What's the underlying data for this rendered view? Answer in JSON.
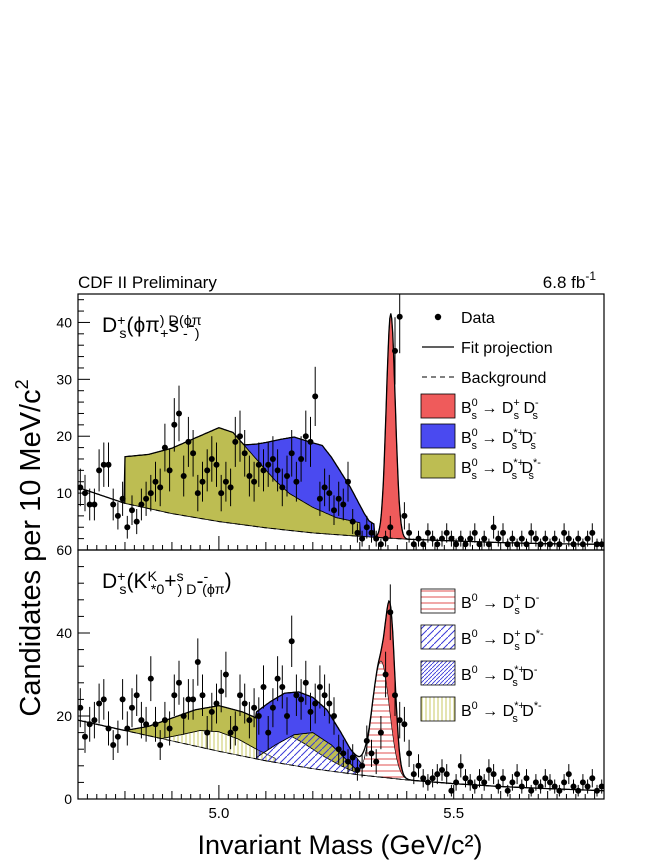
{
  "header": {
    "left": "CDF II Preliminary",
    "right_base": "6.8 fb",
    "right_sup": "-1"
  },
  "axes": {
    "ylabel_main": "Candidates per 10 MeV/c",
    "ylabel_sup": "2",
    "xlabel": "Invariant Mass (GeV/c²)",
    "x_ticks": [
      {
        "value": 5.0,
        "label": "5.0"
      },
      {
        "value": 5.5,
        "label": "5.5"
      }
    ]
  },
  "colors": {
    "red": "#ef5b5b",
    "blue": "#4a4af0",
    "olive": "#bdbd52",
    "hatch_red": "#e05050",
    "hatch_blue": "#3a3ad8",
    "hatch_yellow": "#c8c860"
  },
  "chart_data": [
    {
      "type": "scatter",
      "name": "top-panel",
      "title_parts": [
        "D",
        "s",
        "+",
        "(ϕπ",
        "+",
        ") D",
        "s",
        "-",
        "(ϕπ",
        "-",
        ")"
      ],
      "xlim": [
        4.7,
        5.82
      ],
      "ylim": [
        0,
        45
      ],
      "y_ticks": [
        10,
        20,
        30,
        40
      ],
      "legend": [
        {
          "kind": "marker",
          "label": "Data"
        },
        {
          "kind": "line",
          "label": "Fit projection"
        },
        {
          "kind": "dashed",
          "label": "Background"
        },
        {
          "kind": "fill",
          "color": "red",
          "parts": [
            "B",
            "s",
            "0",
            " → D",
            "s",
            "+",
            " D",
            "s",
            "-"
          ]
        },
        {
          "kind": "fill",
          "color": "blue",
          "parts": [
            "B",
            "s",
            "0",
            " → D",
            "s",
            "*+",
            " D",
            "s",
            "-"
          ]
        },
        {
          "kind": "fill",
          "color": "olive",
          "parts": [
            "B",
            "s",
            "0",
            " → D",
            "s",
            "*+",
            " D",
            "s",
            "*-"
          ]
        }
      ],
      "data_points": {
        "x": [
          4.705,
          4.715,
          4.725,
          4.735,
          4.745,
          4.755,
          4.765,
          4.775,
          4.785,
          4.795,
          4.805,
          4.815,
          4.825,
          4.835,
          4.845,
          4.855,
          4.865,
          4.875,
          4.885,
          4.895,
          4.905,
          4.915,
          4.925,
          4.935,
          4.945,
          4.955,
          4.965,
          4.975,
          4.985,
          4.995,
          5.005,
          5.015,
          5.025,
          5.035,
          5.045,
          5.055,
          5.065,
          5.075,
          5.085,
          5.095,
          5.105,
          5.115,
          5.125,
          5.135,
          5.145,
          5.155,
          5.165,
          5.175,
          5.185,
          5.195,
          5.205,
          5.215,
          5.225,
          5.235,
          5.245,
          5.255,
          5.265,
          5.275,
          5.285,
          5.295,
          5.305,
          5.315,
          5.325,
          5.335,
          5.345,
          5.355,
          5.365,
          5.375,
          5.385,
          5.395,
          5.405,
          5.415,
          5.425,
          5.435,
          5.445,
          5.455,
          5.465,
          5.475,
          5.485,
          5.495,
          5.505,
          5.515,
          5.525,
          5.535,
          5.545,
          5.555,
          5.565,
          5.575,
          5.585,
          5.595,
          5.605,
          5.615,
          5.625,
          5.635,
          5.645,
          5.655,
          5.665,
          5.675,
          5.685,
          5.695,
          5.705,
          5.715,
          5.725,
          5.735,
          5.745,
          5.755,
          5.765,
          5.775,
          5.785,
          5.795,
          5.805,
          5.815
        ],
        "y": [
          11,
          10,
          8,
          8,
          14,
          15,
          15,
          8,
          6,
          9,
          4,
          7,
          5,
          8,
          9,
          10,
          12,
          11,
          18,
          14,
          22,
          24,
          13,
          19,
          17,
          10,
          12,
          14,
          16,
          15,
          10,
          12,
          11,
          19,
          20,
          17,
          13,
          12,
          15,
          14,
          15,
          16,
          14,
          11,
          13,
          17,
          12,
          16,
          20,
          19,
          27,
          9,
          11,
          10,
          7,
          9,
          8,
          12,
          5,
          3,
          2,
          4,
          3,
          2,
          1,
          2,
          4,
          35,
          41,
          6,
          3,
          1,
          2,
          1,
          3,
          2,
          1,
          2,
          3,
          2,
          1,
          2,
          1,
          2,
          3,
          1,
          2,
          1,
          4,
          2,
          3,
          1,
          2,
          1,
          2,
          1,
          3,
          2,
          1,
          2,
          1,
          2,
          1,
          3,
          2,
          1,
          2,
          1,
          2,
          3,
          1,
          1
        ],
        "yerr": [
          3.3,
          3.2,
          2.8,
          2.8,
          3.7,
          3.9,
          3.9,
          2.8,
          2.4,
          3.0,
          2.0,
          2.6,
          2.2,
          2.8,
          3.0,
          3.2,
          3.5,
          3.3,
          4.2,
          3.7,
          4.7,
          4.9,
          3.6,
          4.4,
          4.1,
          3.2,
          3.5,
          3.7,
          4.0,
          3.9,
          3.2,
          3.5,
          3.3,
          4.4,
          4.5,
          4.1,
          3.6,
          3.5,
          3.9,
          3.7,
          3.9,
          4.0,
          3.7,
          3.3,
          3.6,
          4.1,
          3.5,
          4.0,
          4.5,
          4.4,
          5.2,
          3.0,
          3.3,
          3.2,
          2.6,
          3.0,
          2.8,
          3.5,
          2.2,
          1.7,
          1.4,
          2.0,
          1.7,
          1.4,
          1.0,
          1.4,
          2.0,
          5.9,
          6.4,
          2.4,
          1.7,
          1.0,
          1.4,
          1.0,
          1.7,
          1.4,
          1.0,
          1.4,
          1.7,
          1.4,
          1.0,
          1.4,
          1.0,
          1.4,
          1.7,
          1.0,
          1.4,
          1.0,
          2.0,
          1.4,
          1.7,
          1.0,
          1.4,
          1.0,
          1.4,
          1.0,
          1.7,
          1.4,
          1.0,
          1.4,
          1.0,
          1.4,
          1.0,
          1.7,
          1.4,
          1.0,
          1.4,
          1.0,
          1.4,
          1.7,
          1.0,
          1.0
        ]
      },
      "components": {
        "background_curve": {
          "x": [
            4.7,
            4.8,
            4.9,
            5.0,
            5.1,
            5.2,
            5.3,
            5.4,
            5.5,
            5.6,
            5.7,
            5.82
          ],
          "y": [
            11.0,
            8.2,
            6.4,
            5.0,
            3.9,
            3.0,
            2.4,
            1.9,
            1.6,
            1.3,
            1.1,
            1.0
          ]
        },
        "olive_fill": {
          "x": [
            4.8,
            4.85,
            4.9,
            4.95,
            5.0,
            5.03,
            5.06,
            5.09,
            5.12,
            5.15,
            5.2,
            5.25,
            5.3
          ],
          "y": [
            8.2,
            9.5,
            11.5,
            14.0,
            16.5,
            16.0,
            13.5,
            11.0,
            8.5,
            6.5,
            4.5,
            3.0,
            2.4
          ]
        },
        "blue_fill": {
          "x": [
            5.05,
            5.08,
            5.1,
            5.13,
            5.16,
            5.19,
            5.22,
            5.24,
            5.26,
            5.28,
            5.3,
            5.31,
            5.32,
            5.33
          ],
          "y": [
            14.0,
            14.5,
            15.0,
            15.8,
            16.5,
            16.0,
            15.5,
            13.5,
            11.0,
            8.5,
            5.5,
            4.0,
            2.8,
            2.3
          ]
        },
        "red_peak": {
          "center": 5.366,
          "sigma": 0.0095,
          "amplitude": 39.5
        },
        "fit_curve_note": "total fit = background + olive + blue + red"
      }
    },
    {
      "type": "scatter",
      "name": "bottom-panel",
      "title_parts": [
        "D",
        "s",
        "+",
        "(K",
        "*0",
        "K",
        "+",
        ") D",
        "s",
        "-",
        "(ϕπ",
        "-",
        ")"
      ],
      "xlim": [
        4.7,
        5.82
      ],
      "ylim": [
        0,
        60
      ],
      "y_ticks": [
        0,
        20,
        40,
        60
      ],
      "legend": [
        {
          "kind": "hatch",
          "pattern": "horizontal",
          "color": "hatch_red",
          "parts": [
            "B",
            "",
            "0",
            " → D",
            "s",
            "+",
            " D",
            "",
            "-"
          ]
        },
        {
          "kind": "hatch",
          "pattern": "diagonal",
          "color": "hatch_blue",
          "parts": [
            "B",
            "",
            "0",
            " → D",
            "s",
            "+",
            " D",
            "",
            "*-"
          ]
        },
        {
          "kind": "hatch",
          "pattern": "diagonal-dense",
          "color": "hatch_blue",
          "parts": [
            "B",
            "",
            "0",
            " → D",
            "s",
            "*+",
            " D",
            "",
            "-"
          ]
        },
        {
          "kind": "hatch",
          "pattern": "vertical",
          "color": "hatch_yellow",
          "parts": [
            "B",
            "",
            "0",
            " → D",
            "s",
            "*+",
            " D",
            "",
            "*-"
          ]
        }
      ],
      "data_points": {
        "x": [
          4.705,
          4.715,
          4.725,
          4.735,
          4.745,
          4.755,
          4.765,
          4.775,
          4.785,
          4.795,
          4.805,
          4.815,
          4.825,
          4.835,
          4.845,
          4.855,
          4.865,
          4.875,
          4.885,
          4.895,
          4.905,
          4.915,
          4.925,
          4.935,
          4.945,
          4.955,
          4.965,
          4.975,
          4.985,
          4.995,
          5.005,
          5.015,
          5.025,
          5.035,
          5.045,
          5.055,
          5.065,
          5.075,
          5.085,
          5.095,
          5.105,
          5.115,
          5.125,
          5.135,
          5.145,
          5.155,
          5.165,
          5.175,
          5.185,
          5.195,
          5.205,
          5.215,
          5.225,
          5.235,
          5.245,
          5.255,
          5.265,
          5.275,
          5.285,
          5.295,
          5.305,
          5.315,
          5.325,
          5.335,
          5.345,
          5.355,
          5.365,
          5.375,
          5.385,
          5.395,
          5.405,
          5.415,
          5.425,
          5.435,
          5.445,
          5.455,
          5.465,
          5.475,
          5.485,
          5.495,
          5.505,
          5.515,
          5.525,
          5.535,
          5.545,
          5.555,
          5.565,
          5.575,
          5.585,
          5.595,
          5.605,
          5.615,
          5.625,
          5.635,
          5.645,
          5.655,
          5.665,
          5.675,
          5.685,
          5.695,
          5.705,
          5.715,
          5.725,
          5.735,
          5.745,
          5.755,
          5.765,
          5.775,
          5.785,
          5.795,
          5.805,
          5.815
        ],
        "y": [
          22,
          15,
          18,
          19,
          23,
          24,
          17,
          13,
          15,
          24,
          17,
          22,
          25,
          19,
          18,
          29,
          18,
          13,
          19,
          17,
          25,
          28,
          20,
          24,
          24,
          33,
          25,
          16,
          21,
          23,
          26,
          30,
          16,
          17,
          25,
          23,
          19,
          22,
          20,
          27,
          16,
          22,
          29,
          27,
          20,
          38,
          25,
          24,
          28,
          21,
          23,
          27,
          25,
          23,
          20,
          12,
          11,
          9,
          10,
          7,
          8,
          14,
          11,
          9,
          16,
          30,
          45,
          25,
          19,
          18,
          11,
          6,
          8,
          5,
          4,
          5,
          6,
          7,
          6,
          2,
          4,
          8,
          5,
          4,
          3,
          5,
          4,
          7,
          6,
          3,
          5,
          2,
          4,
          6,
          3,
          5,
          2,
          4,
          3,
          5,
          4,
          3,
          2,
          4,
          6,
          3,
          2,
          4,
          3,
          5,
          2,
          3
        ],
        "yerr": [
          4.7,
          3.9,
          4.2,
          4.4,
          4.8,
          4.9,
          4.1,
          3.6,
          3.9,
          4.9,
          4.1,
          4.7,
          5.0,
          4.4,
          4.2,
          5.4,
          4.2,
          3.6,
          4.4,
          4.1,
          5.0,
          5.3,
          4.5,
          4.9,
          4.9,
          5.7,
          5.0,
          4.0,
          4.6,
          4.8,
          5.1,
          5.5,
          4.0,
          4.1,
          5.0,
          4.8,
          4.4,
          4.7,
          4.5,
          5.2,
          4.0,
          4.7,
          5.4,
          5.2,
          4.5,
          6.2,
          5.0,
          4.9,
          5.3,
          4.6,
          4.8,
          5.2,
          5.0,
          4.8,
          4.5,
          3.5,
          3.3,
          3.0,
          3.2,
          2.6,
          2.8,
          3.7,
          3.3,
          3.0,
          4.0,
          5.5,
          6.7,
          5.0,
          4.4,
          4.2,
          3.3,
          2.4,
          2.8,
          2.2,
          2.0,
          2.2,
          2.4,
          2.6,
          2.4,
          1.4,
          2.0,
          2.8,
          2.2,
          2.0,
          1.7,
          2.2,
          2.0,
          2.6,
          2.4,
          1.7,
          2.2,
          1.4,
          2.0,
          2.4,
          1.7,
          2.2,
          1.4,
          2.0,
          1.7,
          2.2,
          2.0,
          1.7,
          1.4,
          2.0,
          2.4,
          1.7,
          1.4,
          2.0,
          1.7,
          2.2,
          1.4,
          1.7
        ]
      },
      "components": {
        "background_curve": {
          "x": [
            4.7,
            4.8,
            4.9,
            5.0,
            5.1,
            5.2,
            5.3,
            5.4,
            5.5,
            5.6,
            5.7,
            5.82
          ],
          "y": [
            19.0,
            16.5,
            14.0,
            11.5,
            9.2,
            7.3,
            5.8,
            4.6,
            3.7,
            3.0,
            2.5,
            2.0
          ]
        },
        "yellow_hatch": {
          "x": [
            4.88,
            4.92,
            4.96,
            5.0,
            5.04,
            5.08,
            5.12
          ],
          "y": [
            14.6,
            15.5,
            16.5,
            16.2,
            14.5,
            12.0,
            9.8
          ]
        },
        "olive_fill": {
          "x": [
            4.8,
            4.85,
            4.9,
            4.95,
            5.0,
            5.05,
            5.1,
            5.14,
            5.18,
            5.22,
            5.26,
            5.3
          ],
          "y": [
            16.5,
            17.5,
            19.5,
            21.5,
            22.5,
            21.0,
            18.5,
            16.0,
            13.5,
            10.5,
            8.0,
            6.0
          ]
        },
        "blue_fill": {
          "x": [
            5.08,
            5.11,
            5.14,
            5.17,
            5.2,
            5.23,
            5.26,
            5.28,
            5.3,
            5.32,
            5.34
          ],
          "y": [
            21.0,
            23.5,
            25.5,
            25.8,
            24.5,
            21.5,
            16.0,
            12.0,
            9.0,
            6.5,
            5.5
          ]
        },
        "blue_hatch": {
          "x": [
            5.08,
            5.12,
            5.16,
            5.2,
            5.24,
            5.28,
            5.3
          ],
          "y": [
            10.0,
            13.0,
            15.5,
            16.0,
            13.0,
            8.5,
            6.2
          ]
        },
        "red_hatch_peak": {
          "center": 5.345,
          "sigma": 0.018,
          "amplitude": 28.0
        },
        "red_peak": {
          "center": 5.366,
          "sigma": 0.0095,
          "amplitude": 27.0
        },
        "fit_curve_note": "total fit = background + olive + blue + red components"
      }
    }
  ]
}
